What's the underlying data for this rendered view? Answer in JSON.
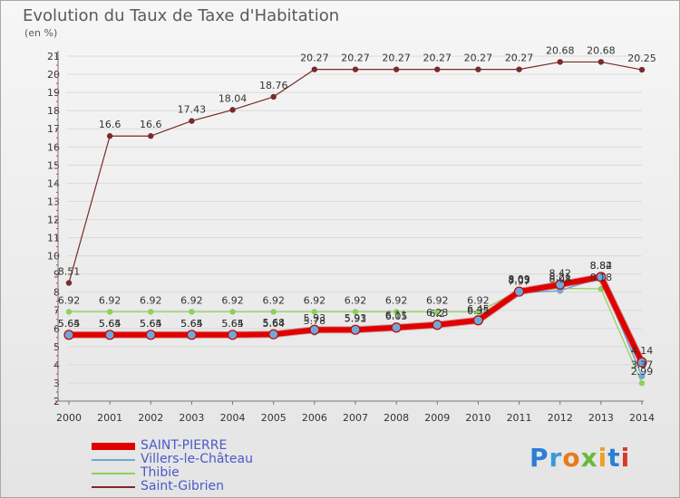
{
  "title": "Evolution du Taux de Taxe d'Habitation",
  "unit_label": "(en %)",
  "logo_text": "Proxiti",
  "chart_data": {
    "type": "line",
    "title": "Evolution du Taux de Taxe d'Habitation",
    "ylabel": "(en %)",
    "xlabel": "",
    "ylim": [
      2,
      21
    ],
    "yticks": [
      2,
      3,
      4,
      5,
      6,
      7,
      8,
      9,
      10,
      11,
      12,
      13,
      14,
      15,
      16,
      17,
      18,
      19,
      20,
      21
    ],
    "categories": [
      "2000",
      "2001",
      "2002",
      "2003",
      "2004",
      "2005",
      "2006",
      "2007",
      "2008",
      "2009",
      "2010",
      "2011",
      "2012",
      "2013",
      "2014"
    ],
    "grid": true,
    "legend_position": "bottom-left",
    "series": [
      {
        "name": "Saint-Gibrien",
        "color": "#7a2a2a",
        "values": [
          8.51,
          16.6,
          16.6,
          17.43,
          18.04,
          18.76,
          20.27,
          20.27,
          20.27,
          20.27,
          20.27,
          20.27,
          20.68,
          20.68,
          20.25
        ],
        "labels": [
          "8.51",
          "16.6",
          "16.6",
          "17.43",
          "18.04",
          "18.76",
          "20.27",
          "20.27",
          "20.27",
          "20.27",
          "20.27",
          "20.27",
          "20.68",
          "20.68",
          "20.25"
        ]
      },
      {
        "name": "Thibie",
        "color": "#8ed05a",
        "values": [
          6.92,
          6.92,
          6.92,
          6.92,
          6.92,
          6.92,
          6.92,
          6.92,
          6.92,
          6.92,
          6.92,
          8.09,
          8.21,
          8.18,
          2.99
        ],
        "labels": [
          "6.92",
          "6.92",
          "6.92",
          "6.92",
          "6.92",
          "6.92",
          "6.92",
          "6.92",
          "6.92",
          "6.92",
          "6.92",
          "8.09",
          "8.21",
          "8.18",
          "2.99"
        ]
      },
      {
        "name": "Villers-le-Château",
        "color": "#6fa8d8",
        "values": [
          5.64,
          5.64,
          5.64,
          5.64,
          5.64,
          5.64,
          5.78,
          5.91,
          6.11,
          6.23,
          6.35,
          7.97,
          8.08,
          8.82,
          3.37
        ],
        "labels": [
          "5.64",
          "5.64",
          "5.64",
          "5.64",
          "5.64",
          "5.64",
          "5.78",
          "5.91",
          "6.11",
          "6.23",
          "6.35",
          "7.97",
          "8.08",
          "8.82",
          "3.37"
        ]
      },
      {
        "name": "SAINT-PIERRE",
        "color": "#e00000",
        "values": [
          5.65,
          5.65,
          5.65,
          5.65,
          5.65,
          5.68,
          5.93,
          5.93,
          6.05,
          6.2,
          6.45,
          8.03,
          8.42,
          8.84,
          4.14
        ],
        "labels": [
          "5.65",
          "5.65",
          "5.65",
          "5.65",
          "5.65",
          "5.68",
          "5.93",
          "5.93",
          "6.05",
          "6.2",
          "6.45",
          "8.03",
          "8.42",
          "8.84",
          "4.14"
        ]
      }
    ]
  },
  "legend": [
    {
      "name": "SAINT-PIERRE",
      "color": "#e00000"
    },
    {
      "name": "Villers-le-Château",
      "color": "#6fa8d8"
    },
    {
      "name": "Thibie",
      "color": "#8ed05a"
    },
    {
      "name": "Saint-Gibrien",
      "color": "#7a2a2a"
    }
  ]
}
